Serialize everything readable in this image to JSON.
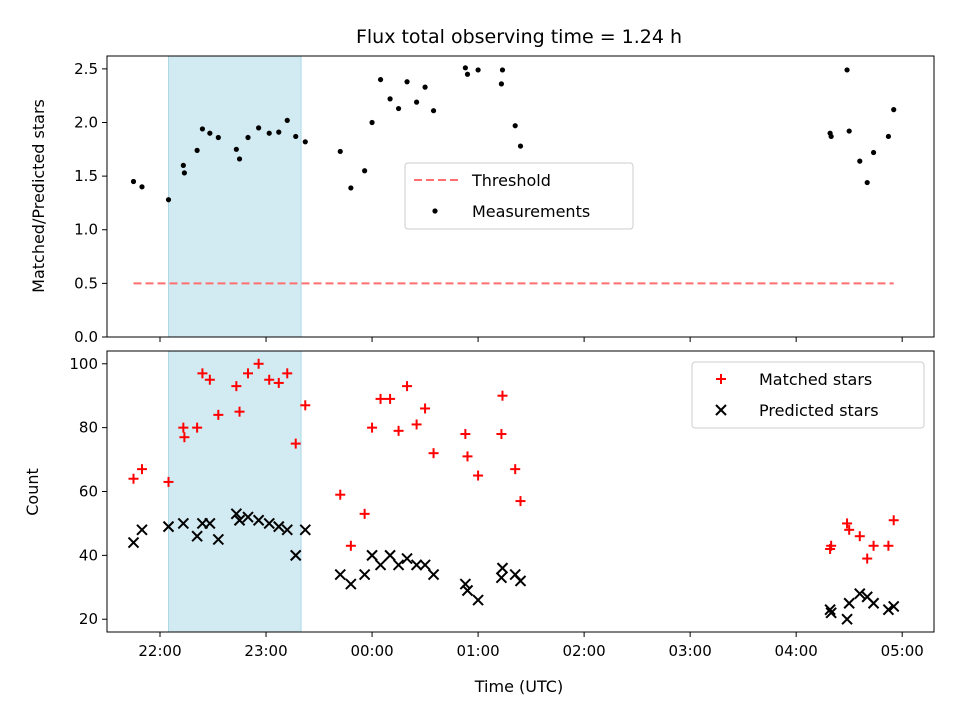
{
  "chart_data": {
    "title": "Flux total observing time = 1.24 h",
    "xlabel": "Time (UTC)",
    "x_ticks": [
      "22:00",
      "23:00",
      "00:00",
      "01:00",
      "02:00",
      "03:00",
      "04:00",
      "05:00"
    ],
    "x_tick_hours": [
      22,
      23,
      24,
      25,
      26,
      27,
      28,
      29
    ],
    "x_range": [
      21.5,
      29.3
    ],
    "highlight_span": {
      "start": 22.08,
      "end": 23.33,
      "color": "#add8e6"
    },
    "panels": [
      {
        "type": "scatter",
        "ylabel": "Matched/Predicted stars",
        "ylim": [
          0,
          2.62
        ],
        "y_ticks": [
          0.0,
          0.5,
          1.0,
          1.5,
          2.0,
          2.5
        ],
        "y_tick_labels": [
          "0.0",
          "0.5",
          "1.0",
          "1.5",
          "2.0",
          "2.5"
        ],
        "threshold": {
          "name": "Threshold",
          "value": 0.5,
          "x_start": 21.75,
          "x_end": 28.92,
          "color": "#ff6f6f"
        },
        "series": [
          {
            "name": "Measurements",
            "color": "#000000",
            "marker": "dot",
            "x": [
              21.75,
              21.83,
              22.08,
              22.22,
              22.23,
              22.35,
              22.4,
              22.47,
              22.55,
              22.72,
              22.75,
              22.83,
              22.93,
              23.03,
              23.12,
              23.2,
              23.28,
              23.37,
              23.7,
              23.8,
              23.93,
              24.0,
              24.08,
              24.17,
              24.25,
              24.33,
              24.42,
              24.5,
              24.58,
              24.88,
              24.9,
              25.0,
              25.22,
              25.23,
              25.35,
              25.4,
              28.32,
              28.33,
              28.48,
              28.5,
              28.6,
              28.67,
              28.73,
              28.87,
              28.92
            ],
            "y": [
              1.45,
              1.4,
              1.28,
              1.6,
              1.53,
              1.74,
              1.94,
              1.9,
              1.86,
              1.75,
              1.66,
              1.86,
              1.95,
              1.9,
              1.91,
              2.02,
              1.87,
              1.82,
              1.73,
              1.39,
              1.55,
              2.0,
              2.4,
              2.22,
              2.13,
              2.38,
              2.19,
              2.33,
              2.11,
              2.51,
              2.45,
              2.49,
              2.36,
              2.49,
              1.97,
              1.78,
              1.9,
              1.87,
              2.49,
              1.92,
              1.64,
              1.44,
              1.72,
              1.87,
              2.12
            ]
          }
        ],
        "legend": {
          "placement": "center",
          "entries": [
            "Threshold",
            "Measurements"
          ]
        }
      },
      {
        "type": "scatter",
        "ylabel": "Count",
        "ylim": [
          16,
          104
        ],
        "y_ticks": [
          20,
          40,
          60,
          80,
          100
        ],
        "y_tick_labels": [
          "20",
          "40",
          "60",
          "80",
          "100"
        ],
        "series": [
          {
            "name": "Matched stars",
            "color": "#ff0000",
            "marker": "plus",
            "x": [
              21.75,
              21.83,
              22.08,
              22.22,
              22.23,
              22.35,
              22.4,
              22.47,
              22.55,
              22.72,
              22.75,
              22.83,
              22.93,
              23.03,
              23.12,
              23.2,
              23.28,
              23.37,
              23.7,
              23.8,
              23.93,
              24.0,
              24.08,
              24.17,
              24.25,
              24.33,
              24.42,
              24.5,
              24.58,
              24.88,
              24.9,
              25.0,
              25.22,
              25.23,
              25.35,
              25.4,
              28.32,
              28.33,
              28.48,
              28.5,
              28.6,
              28.67,
              28.73,
              28.87,
              28.92
            ],
            "y": [
              64,
              67,
              63,
              80,
              77,
              80,
              97,
              95,
              84,
              93,
              85,
              97,
              100,
              95,
              94,
              97,
              75,
              87,
              59,
              43,
              53,
              80,
              89,
              89,
              79,
              93,
              81,
              86,
              72,
              78,
              71,
              65,
              78,
              90,
              67,
              57,
              42,
              43,
              50,
              48,
              46,
              39,
              43,
              43,
              51
            ]
          },
          {
            "name": "Predicted stars",
            "color": "#000000",
            "marker": "cross",
            "x": [
              21.75,
              21.83,
              22.08,
              22.22,
              22.35,
              22.4,
              22.47,
              22.55,
              22.72,
              22.75,
              22.83,
              22.93,
              23.03,
              23.12,
              23.2,
              23.28,
              23.37,
              23.7,
              23.8,
              23.93,
              24.0,
              24.08,
              24.17,
              24.25,
              24.33,
              24.42,
              24.5,
              24.58,
              24.88,
              24.9,
              25.0,
              25.22,
              25.23,
              25.35,
              25.4,
              28.32,
              28.33,
              28.48,
              28.5,
              28.6,
              28.67,
              28.73,
              28.87,
              28.92
            ],
            "y": [
              44,
              48,
              49,
              50,
              46,
              50,
              50,
              45,
              53,
              51,
              52,
              51,
              50,
              49,
              48,
              40,
              48,
              34,
              31,
              34,
              40,
              37,
              40,
              37,
              39,
              37,
              37,
              34,
              31,
              29,
              26,
              33,
              36,
              34,
              32,
              23,
              22,
              20,
              25,
              28,
              27,
              25,
              23,
              24
            ]
          }
        ],
        "legend": {
          "placement": "upper right",
          "entries": [
            "Matched stars",
            "Predicted stars"
          ]
        }
      }
    ]
  }
}
